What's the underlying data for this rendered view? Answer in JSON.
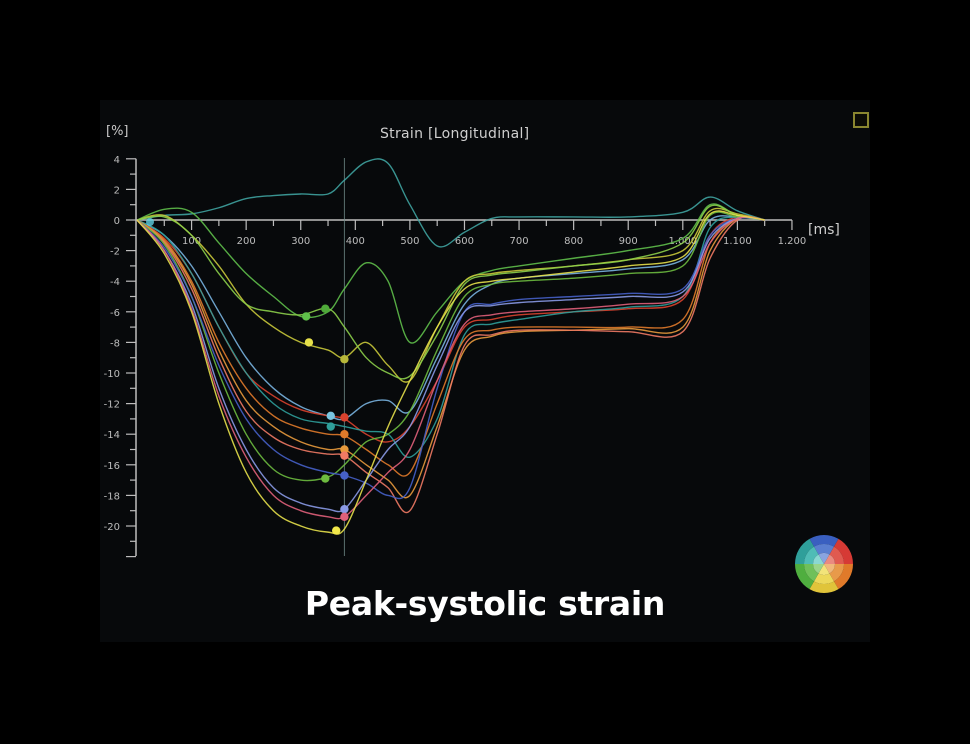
{
  "panel": {
    "maximize_icon": "square-outline-icon",
    "segment_wheel_icon": "bullseye-segment-color-wheel-icon"
  },
  "caption": "Peak-systolic strain",
  "chart_data": {
    "type": "line",
    "title": "Strain [Longitudinal]",
    "xlabel": "[ms]",
    "ylabel": "[%]",
    "xlim": [
      0,
      1200
    ],
    "ylim": [
      -22,
      4
    ],
    "x_ticks": [
      100,
      200,
      300,
      400,
      500,
      600,
      700,
      800,
      900,
      1000,
      1100,
      1200
    ],
    "x_tick_labels": [
      "100",
      "200",
      "300",
      "400",
      "500",
      "600",
      "700",
      "800",
      "900",
      "1.000",
      "1.100",
      "1.200"
    ],
    "y_ticks": [
      4,
      2,
      0,
      -2,
      -4,
      -6,
      -8,
      -10,
      -12,
      -14,
      -16,
      -18,
      -20
    ],
    "y_tick_labels": [
      "4",
      "2",
      "0",
      "-2",
      "-4",
      "-6",
      "-8",
      "-10",
      "-12",
      "-14",
      "-16",
      "-18",
      "-20"
    ],
    "grid": false,
    "legend": "none (segment color wheel bottom-right)",
    "vertical_marker_ms": 380,
    "annotation": "Peak-systolic strain",
    "x": [
      0,
      50,
      100,
      150,
      200,
      250,
      300,
      350,
      380,
      420,
      460,
      500,
      550,
      600,
      650,
      700,
      800,
      900,
      1000,
      1050,
      1100,
      1150
    ],
    "series": [
      {
        "name": "seg-teal-positive",
        "color": "#3fa3a0",
        "values": [
          0,
          0.3,
          0.4,
          0.8,
          1.4,
          1.6,
          1.7,
          1.7,
          2.6,
          3.8,
          3.7,
          1.0,
          -1.7,
          -0.8,
          0.1,
          0.2,
          0.2,
          0.2,
          0.5,
          1.5,
          0.6,
          0
        ]
      },
      {
        "name": "seg-green-1",
        "color": "#5fbf4a",
        "values": [
          0,
          0.7,
          0.5,
          -1.5,
          -3.5,
          -5.0,
          -6.3,
          -6.0,
          -4.5,
          -2.8,
          -4.0,
          -8.0,
          -6.0,
          -4.0,
          -3.3,
          -3.0,
          -2.5,
          -2.0,
          -1.2,
          1.0,
          0.3,
          0
        ]
      },
      {
        "name": "seg-yellow-1",
        "color": "#c9c93a",
        "values": [
          0,
          0.3,
          -1.0,
          -3.0,
          -5.5,
          -7.0,
          -8.0,
          -8.5,
          -9.0,
          -8.0,
          -9.5,
          -10.5,
          -7.0,
          -4.0,
          -3.5,
          -3.3,
          -3.0,
          -2.6,
          -2.0,
          0.6,
          0.4,
          0
        ]
      },
      {
        "name": "seg-green-2",
        "color": "#8ccf4a",
        "values": [
          0,
          0.2,
          -1.0,
          -3.5,
          -5.5,
          -6.0,
          -6.2,
          -5.8,
          -7.0,
          -9.0,
          -10.0,
          -10.2,
          -7.5,
          -4.2,
          -3.6,
          -3.4,
          -3.0,
          -2.6,
          -1.5,
          0.9,
          0.3,
          0
        ]
      },
      {
        "name": "seg-lightblue",
        "color": "#79b4e0",
        "values": [
          0,
          -1.0,
          -3.0,
          -6.0,
          -9.0,
          -11.0,
          -12.2,
          -12.8,
          -13.0,
          -12.0,
          -11.8,
          -12.5,
          -9.0,
          -5.5,
          -4.2,
          -3.8,
          -3.5,
          -3.2,
          -2.6,
          0.0,
          0.2,
          0
        ]
      },
      {
        "name": "seg-red",
        "color": "#d9422e",
        "values": [
          0,
          -1.2,
          -3.5,
          -7.0,
          -10.0,
          -11.5,
          -12.4,
          -12.8,
          -13.0,
          -14.0,
          -14.5,
          -13.5,
          -10.5,
          -7.0,
          -6.5,
          -6.2,
          -6.0,
          -5.8,
          -5.2,
          -1.0,
          0.2,
          0
        ]
      },
      {
        "name": "seg-teal-2",
        "color": "#2f9f9a",
        "values": [
          0,
          -1.0,
          -3.5,
          -7.0,
          -10.0,
          -12.0,
          -13.0,
          -13.3,
          -13.5,
          -13.8,
          -14.0,
          -15.5,
          -13.0,
          -7.5,
          -6.8,
          -6.5,
          -6.0,
          -5.7,
          -5.0,
          -0.5,
          0.2,
          0
        ]
      },
      {
        "name": "seg-orange",
        "color": "#e07a2a",
        "values": [
          0,
          -1.3,
          -4.0,
          -8.0,
          -11.0,
          -12.8,
          -13.6,
          -14.0,
          -14.1,
          -15.0,
          -16.0,
          -16.5,
          -12.0,
          -7.8,
          -7.2,
          -7.0,
          -7.0,
          -7.0,
          -6.5,
          -1.5,
          0.1,
          0
        ]
      },
      {
        "name": "seg-orange-2",
        "color": "#e89a3c",
        "values": [
          0,
          -1.4,
          -4.2,
          -8.5,
          -11.8,
          -13.5,
          -14.5,
          -15.0,
          -15.0,
          -16.0,
          -17.0,
          -18.0,
          -13.5,
          -8.5,
          -7.6,
          -7.3,
          -7.2,
          -7.1,
          -7.0,
          -2.0,
          0.1,
          0
        ]
      },
      {
        "name": "seg-salmon",
        "color": "#f07a64",
        "values": [
          0,
          -1.5,
          -4.5,
          -9.0,
          -12.5,
          -14.2,
          -15.0,
          -15.3,
          -15.4,
          -16.5,
          -17.5,
          -19.0,
          -14.0,
          -8.2,
          -7.5,
          -7.2,
          -7.2,
          -7.3,
          -7.3,
          -2.5,
          0.0,
          0
        ]
      },
      {
        "name": "seg-green-3",
        "color": "#6dbb3f",
        "values": [
          0,
          -1.6,
          -5.0,
          -10.0,
          -14.0,
          -16.3,
          -17.0,
          -16.8,
          -16.0,
          -14.5,
          -14.0,
          -12.5,
          -8.5,
          -5.0,
          -4.2,
          -4.0,
          -3.8,
          -3.5,
          -3.0,
          0.3,
          0.2,
          0
        ]
      },
      {
        "name": "seg-blue",
        "color": "#4660c8",
        "values": [
          0,
          -1.8,
          -5.0,
          -9.5,
          -13.0,
          -15.0,
          -16.0,
          -16.5,
          -16.7,
          -17.2,
          -18.0,
          -17.5,
          -11.0,
          -6.0,
          -5.5,
          -5.2,
          -5.0,
          -4.8,
          -4.5,
          -1.0,
          0.1,
          0
        ]
      },
      {
        "name": "seg-periwinkle",
        "color": "#8a9ae6",
        "values": [
          0,
          -2.0,
          -5.5,
          -11.0,
          -15.0,
          -17.5,
          -18.5,
          -18.9,
          -18.9,
          -17.0,
          -15.0,
          -13.5,
          -9.5,
          -6.0,
          -5.6,
          -5.4,
          -5.2,
          -5.0,
          -4.7,
          -1.2,
          0.1,
          0
        ]
      },
      {
        "name": "seg-pink",
        "color": "#e0607a",
        "values": [
          0,
          -2.0,
          -5.8,
          -11.5,
          -15.5,
          -18.0,
          -19.0,
          -19.4,
          -19.4,
          -18.0,
          -16.5,
          -15.0,
          -10.5,
          -6.8,
          -6.2,
          -6.0,
          -5.8,
          -5.5,
          -5.0,
          -1.5,
          0.1,
          0
        ]
      },
      {
        "name": "seg-yellow-2",
        "color": "#e6e04a",
        "values": [
          0,
          -2.2,
          -6.0,
          -12.0,
          -16.5,
          -19.0,
          -20.0,
          -20.4,
          -20.2,
          -17.0,
          -13.5,
          -10.5,
          -7.0,
          -4.5,
          -4.0,
          -3.8,
          -3.4,
          -3.0,
          -2.4,
          0.4,
          0.3,
          0
        ]
      }
    ],
    "peak_markers": [
      {
        "series": "seg-green-1",
        "x": 310,
        "y": -6.3,
        "color": "#5fbf4a"
      },
      {
        "series": "seg-green-2",
        "x": 345,
        "y": -5.8,
        "color": "#4faa3a"
      },
      {
        "series": "seg-yellow-1",
        "x": 315,
        "y": -8.0,
        "color": "#e6e04a"
      },
      {
        "series": "seg-yellow-1b",
        "x": 380,
        "y": -9.1,
        "color": "#b8b83a"
      },
      {
        "series": "seg-lightblue",
        "x": 355,
        "y": -12.8,
        "color": "#79c4e0"
      },
      {
        "series": "seg-red",
        "x": 380,
        "y": -12.9,
        "color": "#d9422e"
      },
      {
        "series": "seg-teal-2",
        "x": 355,
        "y": -13.5,
        "color": "#2f9f9a"
      },
      {
        "series": "seg-orange",
        "x": 380,
        "y": -14.0,
        "color": "#e07a2a"
      },
      {
        "series": "seg-orange-2",
        "x": 380,
        "y": -15.0,
        "color": "#e89a3c"
      },
      {
        "series": "seg-salmon",
        "x": 380,
        "y": -15.4,
        "color": "#f07a64"
      },
      {
        "series": "seg-green-3",
        "x": 345,
        "y": -16.9,
        "color": "#6dbb3f"
      },
      {
        "series": "seg-blue",
        "x": 380,
        "y": -16.7,
        "color": "#4660c8"
      },
      {
        "series": "seg-periwinkle",
        "x": 380,
        "y": -18.9,
        "color": "#8a9ae6"
      },
      {
        "series": "seg-pink",
        "x": 380,
        "y": -19.4,
        "color": "#e0607a"
      },
      {
        "series": "seg-yellow-2",
        "x": 365,
        "y": -20.3,
        "color": "#f2e84a"
      }
    ]
  }
}
